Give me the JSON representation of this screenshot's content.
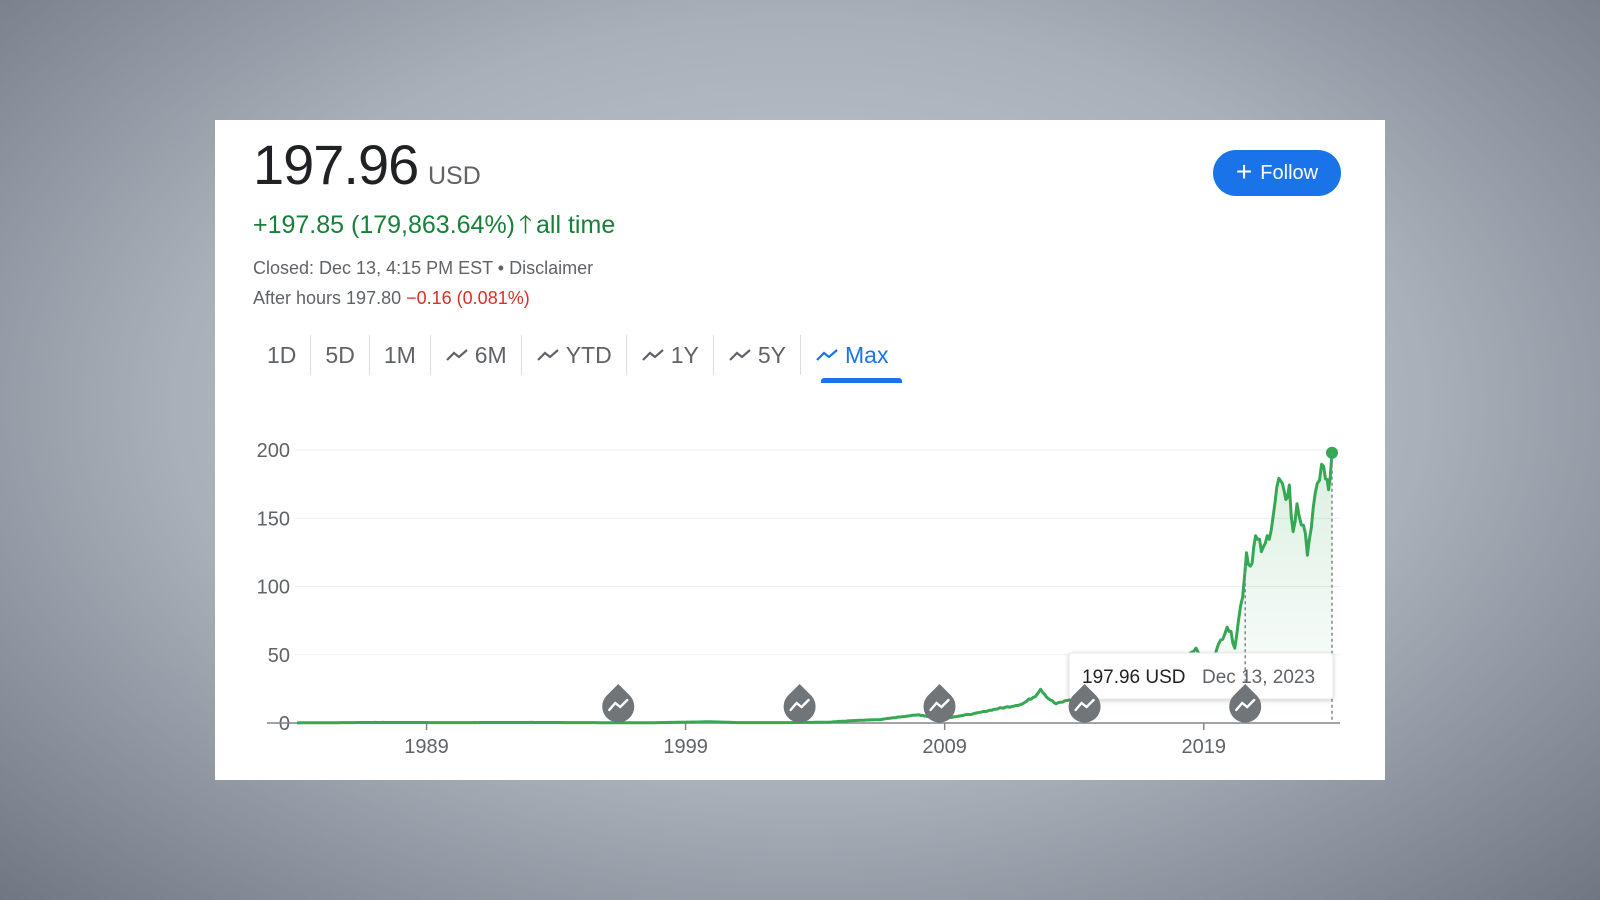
{
  "quote": {
    "price": "197.96",
    "currency": "USD",
    "change": "+197.85 (179,863.64%)",
    "change_period": "all time",
    "closed": "Closed: Dec 13, 4:15 PM EST • Disclaimer",
    "after_hours_label": "After hours 197.80",
    "after_hours_change": "−0.16 (0.081%)"
  },
  "follow_button": {
    "label": "Follow",
    "icon": "plus-icon"
  },
  "tabs": [
    {
      "label": "1D",
      "icon": null
    },
    {
      "label": "5D",
      "icon": null
    },
    {
      "label": "1M",
      "icon": null
    },
    {
      "label": "6M",
      "icon": "trend-icon"
    },
    {
      "label": "YTD",
      "icon": "trend-icon"
    },
    {
      "label": "1Y",
      "icon": "trend-icon"
    },
    {
      "label": "5Y",
      "icon": "trend-icon"
    },
    {
      "label": "Max",
      "icon": "trend-icon",
      "active": true
    }
  ],
  "colors": {
    "up": "#188038",
    "down": "#d93025",
    "accent": "#1a73e8",
    "line": "#34a853"
  },
  "tooltip": {
    "value": "197.96 USD",
    "date": "Dec 13, 2023"
  },
  "chart_data": {
    "type": "area",
    "x_ticks": [
      "1989",
      "1999",
      "2009",
      "2019"
    ],
    "y_ticks": [
      "0",
      "50",
      "100",
      "150",
      "200"
    ],
    "ylim": [
      0,
      200
    ],
    "xlim": [
      1984.0,
      2023.95
    ],
    "grid": true,
    "news_markers": [
      1996.4,
      2003.4,
      2008.8,
      2014.4,
      2020.6
    ],
    "points": [
      [
        1984.0,
        0.1
      ],
      [
        1987.0,
        0.4
      ],
      [
        1990.0,
        0.3
      ],
      [
        1993.0,
        0.4
      ],
      [
        1995.0,
        0.3
      ],
      [
        1997.5,
        0.15
      ],
      [
        2000.0,
        0.9
      ],
      [
        2001.0,
        0.3
      ],
      [
        2003.0,
        0.3
      ],
      [
        2004.5,
        0.6
      ],
      [
        2005.5,
        1.8
      ],
      [
        2006.5,
        2.5
      ],
      [
        2007.5,
        5
      ],
      [
        2008.0,
        6
      ],
      [
        2008.9,
        3
      ],
      [
        2009.5,
        5
      ],
      [
        2010.2,
        7
      ],
      [
        2010.9,
        10
      ],
      [
        2011.5,
        12
      ],
      [
        2012.0,
        14
      ],
      [
        2012.5,
        20
      ],
      [
        2012.7,
        25
      ],
      [
        2013.0,
        18
      ],
      [
        2013.3,
        14
      ],
      [
        2013.8,
        17
      ],
      [
        2014.2,
        19
      ],
      [
        2014.5,
        22
      ],
      [
        2015.1,
        30
      ],
      [
        2015.6,
        28
      ],
      [
        2016.0,
        24
      ],
      [
        2016.4,
        23
      ],
      [
        2017.0,
        30
      ],
      [
        2017.6,
        38
      ],
      [
        2018.2,
        42
      ],
      [
        2018.7,
        56
      ],
      [
        2018.95,
        38
      ],
      [
        2019.4,
        48
      ],
      [
        2019.9,
        72
      ],
      [
        2020.2,
        57
      ],
      [
        2020.5,
        95
      ],
      [
        2020.65,
        125
      ],
      [
        2020.8,
        115
      ],
      [
        2021.0,
        135
      ],
      [
        2021.3,
        125
      ],
      [
        2021.6,
        145
      ],
      [
        2021.9,
        178
      ],
      [
        2022.1,
        165
      ],
      [
        2022.3,
        172
      ],
      [
        2022.45,
        137
      ],
      [
        2022.6,
        162
      ],
      [
        2022.85,
        140
      ],
      [
        2023.0,
        128
      ],
      [
        2023.3,
        162
      ],
      [
        2023.55,
        192
      ],
      [
        2023.7,
        178
      ],
      [
        2023.82,
        170
      ],
      [
        2023.95,
        197.96
      ]
    ]
  }
}
